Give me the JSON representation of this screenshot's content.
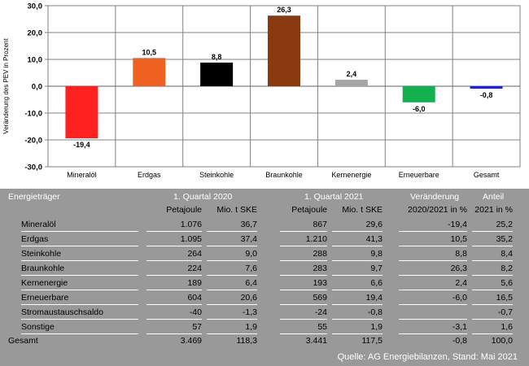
{
  "chart_data": {
    "type": "bar",
    "categories": [
      "Mineralöl",
      "Erdgas",
      "Steinkohle",
      "Braunkohle",
      "Kernenergie",
      "Erneuerbare",
      "Gesamt"
    ],
    "values": [
      -19.4,
      10.5,
      8.8,
      26.3,
      2.4,
      -6.0,
      -0.8
    ],
    "value_labels": [
      "-19,4",
      "10,5",
      "8,8",
      "26,3",
      "2,4",
      "-6,0",
      "-0,8"
    ],
    "colors": [
      "#ff2020",
      "#f06020",
      "#000000",
      "#8b3a10",
      "#a6a6a6",
      "#13b050",
      "#2020e0"
    ],
    "ylabel": "Veränderung des PEV in Prozent",
    "ylim": [
      -30,
      30
    ],
    "yticks": [
      30,
      20,
      10,
      0,
      -10,
      -20,
      -30
    ],
    "ytick_labels": [
      "30,0",
      "20,0",
      "10,0",
      "0,0",
      "-10,0",
      "-20,0",
      "-30,0"
    ],
    "grid": true
  },
  "table": {
    "group_headers": {
      "energy": "Energieträger",
      "q1_2020": "1. Quartal 2020",
      "q1_2021": "1. Quartal 2021",
      "change": "Veränderung",
      "share": "Anteil"
    },
    "sub_headers": [
      "Petajoule",
      "Mio. t SKE",
      "Petajoule",
      "Mio. t SKE",
      "2020/2021 in %",
      "2021 in %"
    ],
    "rows": [
      {
        "name": "Mineralöl",
        "pj20": "1.076",
        "ske20": "36,7",
        "pj21": "867",
        "ske21": "29,6",
        "chg": "-19,4",
        "share": "25,2"
      },
      {
        "name": "Erdgas",
        "pj20": "1.095",
        "ske20": "37,4",
        "pj21": "1.210",
        "ske21": "41,3",
        "chg": "10,5",
        "share": "35,2"
      },
      {
        "name": "Steinkohle",
        "pj20": "264",
        "ske20": "9,0",
        "pj21": "288",
        "ske21": "9,8",
        "chg": "8,8",
        "share": "8,4"
      },
      {
        "name": "Braunkohle",
        "pj20": "224",
        "ske20": "7,6",
        "pj21": "283",
        "ske21": "9,7",
        "chg": "26,3",
        "share": "8,2"
      },
      {
        "name": "Kernenergie",
        "pj20": "189",
        "ske20": "6,4",
        "pj21": "193",
        "ske21": "6,6",
        "chg": "2,4",
        "share": "5,6"
      },
      {
        "name": "Erneuerbare",
        "pj20": "604",
        "ske20": "20,6",
        "pj21": "569",
        "ske21": "19,4",
        "chg": "-6,0",
        "share": "16,5"
      },
      {
        "name": "Stromaustauschsaldo",
        "pj20": "-40",
        "ske20": "-1,3",
        "pj21": "-24",
        "ske21": "-0,8",
        "chg": "",
        "share": "-0,7"
      },
      {
        "name": "Sonstige",
        "pj20": "57",
        "ske20": "1,9",
        "pj21": "55",
        "ske21": "1,9",
        "chg": "-3,1",
        "share": "1,6"
      }
    ],
    "total": {
      "name": "Gesamt",
      "pj20": "3.469",
      "ske20": "118,3",
      "pj21": "3.441",
      "ske21": "117,5",
      "chg": "-0,8",
      "share": "100,0"
    }
  },
  "source": "Quelle: AG Energiebilanzen, Stand: Mai 2021"
}
